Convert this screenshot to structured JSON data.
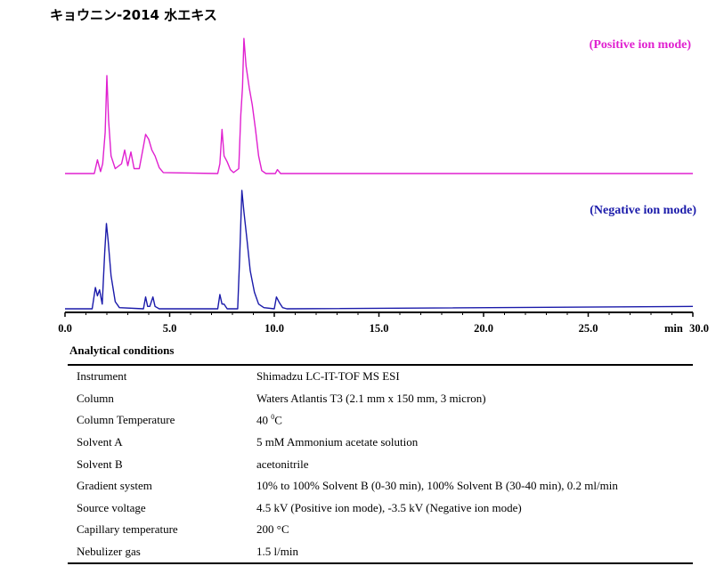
{
  "title": "キョウニン-2014 水エキス",
  "chart_data": {
    "type": "line",
    "xlabel": "min",
    "xlim": [
      0,
      30
    ],
    "x_ticks": [
      "0.0",
      "5.0",
      "10.0",
      "15.0",
      "20.0",
      "25.0",
      "30.0"
    ],
    "series": [
      {
        "name": "(Positive ion mode)",
        "color": "#e020d0",
        "points": [
          [
            0,
            0
          ],
          [
            1.4,
            0
          ],
          [
            1.55,
            0.14
          ],
          [
            1.7,
            0.02
          ],
          [
            1.8,
            0.1
          ],
          [
            1.92,
            0.42
          ],
          [
            2.0,
            1.0
          ],
          [
            2.08,
            0.55
          ],
          [
            2.2,
            0.18
          ],
          [
            2.4,
            0.05
          ],
          [
            2.7,
            0.1
          ],
          [
            2.85,
            0.24
          ],
          [
            3.0,
            0.08
          ],
          [
            3.15,
            0.22
          ],
          [
            3.3,
            0.05
          ],
          [
            3.55,
            0.05
          ],
          [
            3.75,
            0.28
          ],
          [
            3.85,
            0.4
          ],
          [
            4.0,
            0.35
          ],
          [
            4.15,
            0.24
          ],
          [
            4.3,
            0.18
          ],
          [
            4.5,
            0.06
          ],
          [
            4.7,
            0.01
          ],
          [
            7.3,
            0
          ],
          [
            7.4,
            0.1
          ],
          [
            7.5,
            0.45
          ],
          [
            7.6,
            0.18
          ],
          [
            7.75,
            0.12
          ],
          [
            7.9,
            0.04
          ],
          [
            8.05,
            0.01
          ],
          [
            8.3,
            0.05
          ],
          [
            8.4,
            0.6
          ],
          [
            8.48,
            0.88
          ],
          [
            8.55,
            1.38
          ],
          [
            8.65,
            1.1
          ],
          [
            8.8,
            0.88
          ],
          [
            8.95,
            0.7
          ],
          [
            9.1,
            0.45
          ],
          [
            9.25,
            0.18
          ],
          [
            9.4,
            0.03
          ],
          [
            9.6,
            0
          ],
          [
            10.05,
            0
          ],
          [
            10.15,
            0.04
          ],
          [
            10.3,
            0
          ],
          [
            30,
            0
          ]
        ]
      },
      {
        "name": "(Negative ion mode)",
        "color": "#1a1aaa",
        "points": [
          [
            0,
            0
          ],
          [
            1.3,
            0
          ],
          [
            1.45,
            0.18
          ],
          [
            1.55,
            0.11
          ],
          [
            1.65,
            0.16
          ],
          [
            1.78,
            0.04
          ],
          [
            1.9,
            0.48
          ],
          [
            1.98,
            0.72
          ],
          [
            2.06,
            0.58
          ],
          [
            2.2,
            0.28
          ],
          [
            2.4,
            0.06
          ],
          [
            2.6,
            0.01
          ],
          [
            3.75,
            0
          ],
          [
            3.85,
            0.1
          ],
          [
            3.95,
            0.02
          ],
          [
            4.05,
            0.02
          ],
          [
            4.2,
            0.1
          ],
          [
            4.3,
            0.02
          ],
          [
            4.5,
            0
          ],
          [
            7.3,
            0
          ],
          [
            7.4,
            0.12
          ],
          [
            7.5,
            0.04
          ],
          [
            7.6,
            0.04
          ],
          [
            7.75,
            0
          ],
          [
            8.25,
            0
          ],
          [
            8.35,
            0.45
          ],
          [
            8.45,
            1.0
          ],
          [
            8.55,
            0.82
          ],
          [
            8.7,
            0.58
          ],
          [
            8.85,
            0.32
          ],
          [
            9.05,
            0.14
          ],
          [
            9.25,
            0.04
          ],
          [
            9.5,
            0.01
          ],
          [
            10.0,
            0
          ],
          [
            10.1,
            0.1
          ],
          [
            10.25,
            0.05
          ],
          [
            10.4,
            0.01
          ],
          [
            10.6,
            0
          ],
          [
            30,
            0.02
          ]
        ]
      }
    ]
  },
  "conditions": {
    "heading": "Analytical conditions",
    "rows": [
      {
        "param": "Instrument",
        "value": "Shimadzu LC-IT-TOF MS ESI"
      },
      {
        "param": "Column",
        "value": "Waters Atlantis T3 (2.1 mm x 150 mm, 3 micron)"
      },
      {
        "param": "Column Temperature",
        "value_pre": "40 ",
        "value_sup": "0",
        "value_post": "C"
      },
      {
        "param": "Solvent A",
        "value": "5 mM Ammonium acetate solution"
      },
      {
        "param": "Solvent B",
        "value": "acetonitrile"
      },
      {
        "param": "Gradient system",
        "value": "10% to 100% Solvent B (0-30 min), 100% Solvent B (30-40 min), 0.2 ml/min"
      },
      {
        "param": "Source voltage",
        "value": "4.5 kV (Positive ion mode), -3.5 kV (Negative ion mode)"
      },
      {
        "param": "Capillary temperature",
        "value": "200 °C"
      },
      {
        "param": "Nebulizer gas",
        "value": "1.5 l/min"
      }
    ]
  }
}
